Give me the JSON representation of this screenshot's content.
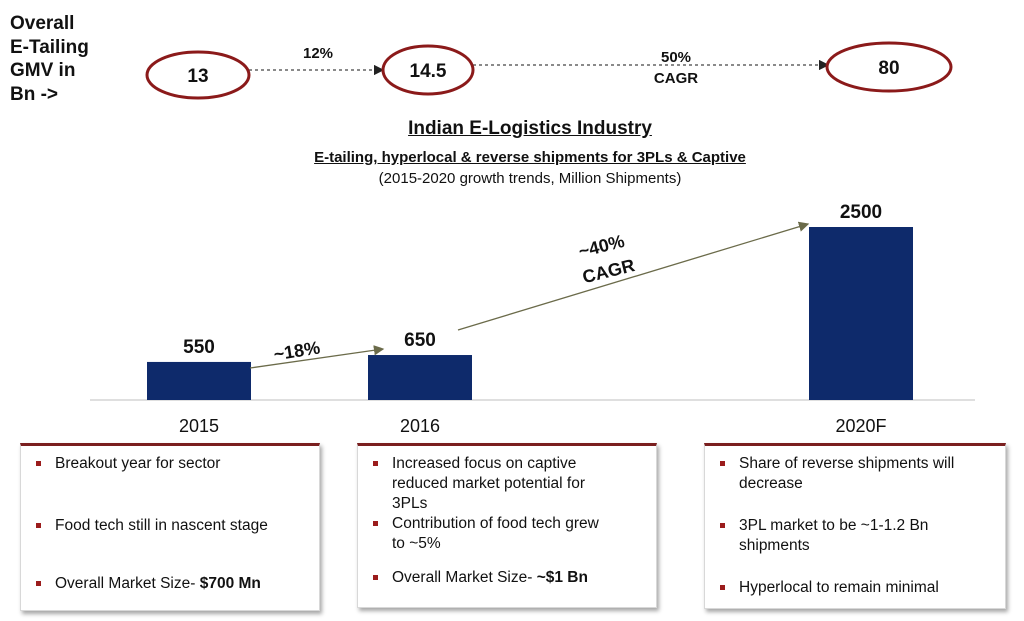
{
  "gmv": {
    "label_lines": [
      "Overall",
      "E-Tailing",
      "GMV in",
      "Bn ->"
    ],
    "values": [
      "13",
      "14.5",
      "80"
    ],
    "rates": [
      {
        "lines": [
          "12%"
        ]
      },
      {
        "lines": [
          "50%",
          "CAGR"
        ]
      }
    ]
  },
  "titles": {
    "main": "Indian E-Logistics Industry",
    "sub": "E-tailing, hyperlocal & reverse shipments for 3PLs & Captive",
    "note": "(2015-2020 growth trends, Million Shipments)"
  },
  "chart_data": {
    "type": "bar",
    "categories": [
      "2015",
      "2016",
      "2020F"
    ],
    "values": [
      550,
      650,
      2500
    ],
    "ylim": [
      0,
      2500
    ],
    "bar_color": "#0e2a6b",
    "growth_annotations": [
      {
        "from": "2015",
        "to": "2016",
        "lines": [
          "~18%"
        ]
      },
      {
        "from": "2016",
        "to": "2020F",
        "lines": [
          "~40%",
          "CAGR"
        ]
      }
    ]
  },
  "boxes": [
    {
      "items": [
        {
          "lines": [
            "Breakout year for sector"
          ]
        },
        {
          "lines": [
            "Food tech still in nascent stage"
          ]
        },
        {
          "lines": [
            "Overall Market Size- "
          ],
          "bold": "$700 Mn"
        }
      ]
    },
    {
      "items": [
        {
          "lines": [
            "Increased focus on captive",
            "reduced market potential for",
            "3PLs"
          ]
        },
        {
          "lines": [
            "Contribution of food tech grew",
            "to ~5%"
          ]
        },
        {
          "lines": [
            "Overall Market Size- "
          ],
          "bold": "~$1 Bn"
        }
      ]
    },
    {
      "items": [
        {
          "lines": [
            "Share of reverse shipments will",
            "decrease"
          ]
        },
        {
          "lines": [
            "3PL market to be ~1-1.2 Bn",
            "shipments"
          ]
        },
        {
          "lines": [
            "Hyperlocal to remain minimal"
          ]
        }
      ]
    }
  ],
  "colors": {
    "ellipse": "#8b1a1a",
    "arrow": "#6b6b4a",
    "box_top": "#7a1f1f",
    "bullet": "#9b1c1c"
  }
}
